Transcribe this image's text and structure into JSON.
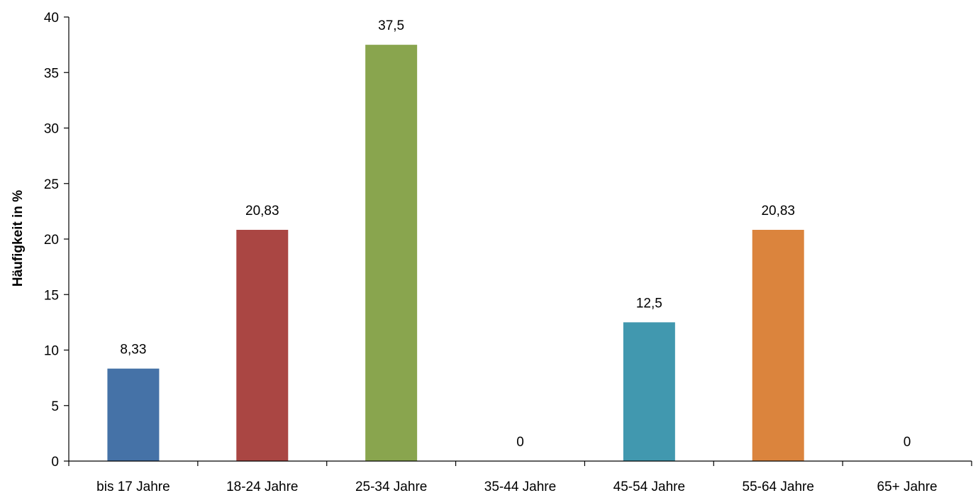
{
  "chart_data": {
    "type": "bar",
    "ylabel": "Häufigkeit in %",
    "xlabel": "",
    "ylim": [
      0,
      40
    ],
    "yticks": [
      0,
      5,
      10,
      15,
      20,
      25,
      30,
      35,
      40
    ],
    "grid": false,
    "legend": "none",
    "categories": [
      "bis 17 Jahre",
      "18-24 Jahre",
      "25-34 Jahre",
      "35-44 Jahre",
      "45-54 Jahre",
      "55-64 Jahre",
      "65+ Jahre"
    ],
    "values": [
      8.33,
      20.83,
      37.5,
      0,
      12.5,
      20.83,
      0
    ],
    "value_labels": [
      "8,33",
      "20,83",
      "37,5",
      "0",
      "12,5",
      "20,83",
      "0"
    ],
    "colors": [
      "#4572A7",
      "#AA4643",
      "#89A54E",
      "#80699B",
      "#4198AF",
      "#DB843D",
      "#93A9CF"
    ]
  }
}
